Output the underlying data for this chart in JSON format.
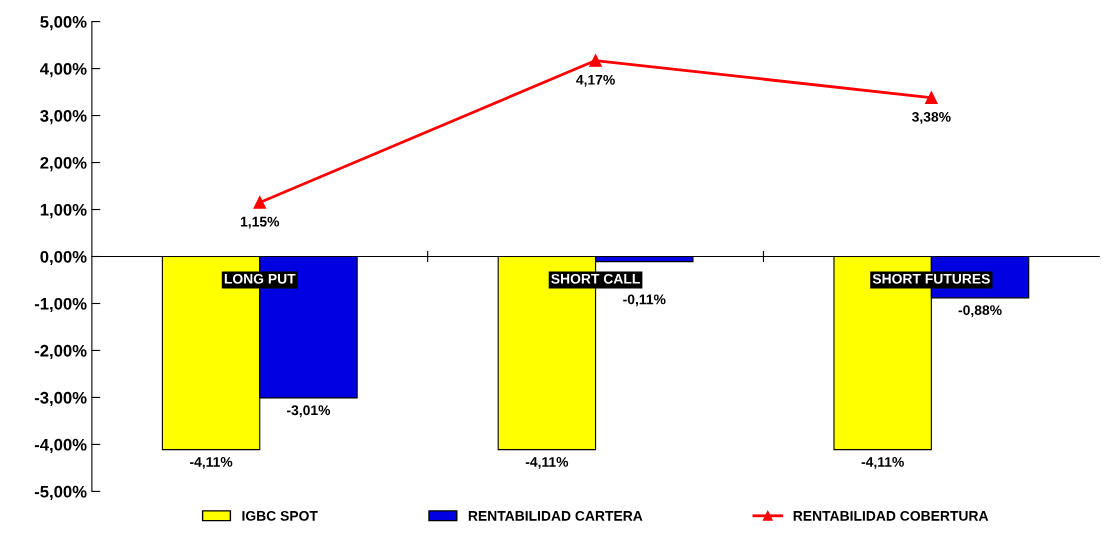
{
  "chart_data": {
    "type": "bar",
    "categories": [
      "LONG PUT",
      "SHORT CALL",
      "SHORT FUTURES"
    ],
    "series": [
      {
        "name": "IGBC SPOT",
        "color": "#ffff00",
        "values": [
          -4.11,
          -4.11,
          -4.11
        ],
        "value_labels": [
          "-4,11%",
          "-4,11%",
          "-4,11%"
        ]
      },
      {
        "name": "RENTABILIDAD CARTERA",
        "color": "#0000e0",
        "values": [
          -3.01,
          -0.11,
          -0.88
        ],
        "value_labels": [
          "-3,01%",
          "-0,11%",
          "-0,88%"
        ]
      },
      {
        "name": "RENTABILIDAD COBERTURA",
        "type": "line",
        "color": "#ff0000",
        "values": [
          1.15,
          4.17,
          3.38
        ],
        "value_labels": [
          "1,15%",
          "4,17%",
          "3,38%"
        ]
      }
    ],
    "ylim": [
      -5,
      5
    ],
    "yticks": [
      {
        "value": -5,
        "label": "-5,00%"
      },
      {
        "value": -4,
        "label": "-4,00%"
      },
      {
        "value": -3,
        "label": "-3,00%"
      },
      {
        "value": -2,
        "label": "-2,00%"
      },
      {
        "value": -1,
        "label": "-1,00%"
      },
      {
        "value": 0,
        "label": "0,00%"
      },
      {
        "value": 1,
        "label": "1,00%"
      },
      {
        "value": 2,
        "label": "2,00%"
      },
      {
        "value": 3,
        "label": "3,00%"
      },
      {
        "value": 4,
        "label": "4,00%"
      },
      {
        "value": 5,
        "label": "5,00%"
      }
    ],
    "grid": false,
    "legend": "bottom",
    "marker": "triangle",
    "line_style": "solid"
  }
}
